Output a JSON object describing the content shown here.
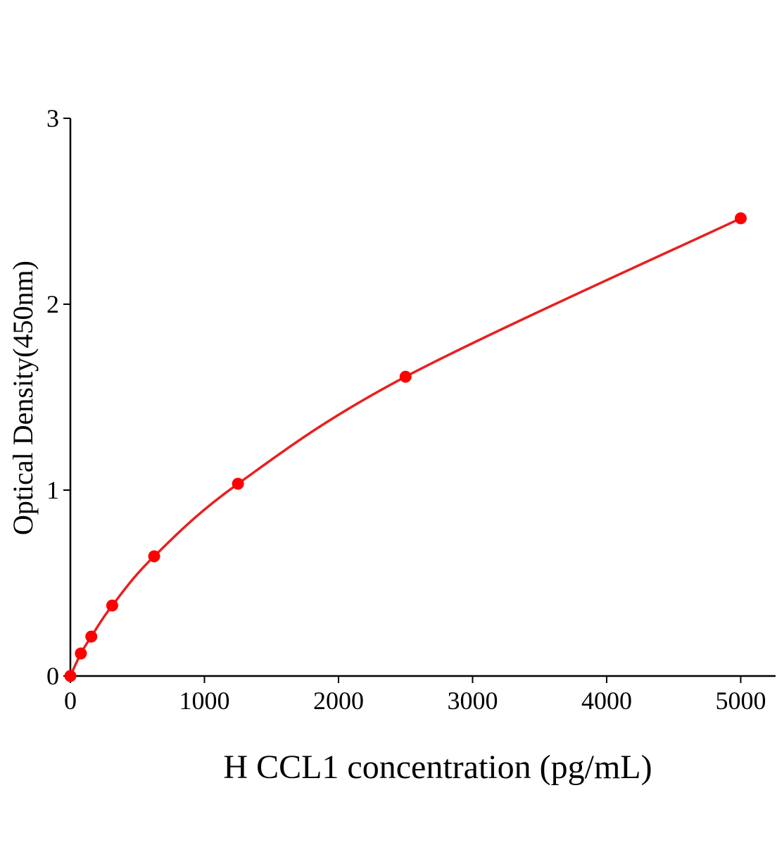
{
  "chart_data": {
    "type": "scatter",
    "xlabel": "H CCL1 concentration (pg/mL)",
    "ylabel": "Optical Density(450nm)",
    "x": [
      0,
      78,
      156,
      312,
      625,
      1250,
      2500,
      5000
    ],
    "series": [
      {
        "color": "#ff0000",
        "values": [
          0.0,
          0.121,
          0.212,
          0.379,
          0.644,
          1.034,
          1.61,
          2.462
        ]
      }
    ],
    "fit_line": true,
    "line_color": "#e8201f",
    "xlim": [
      0,
      5260
    ],
    "xticks": [
      0,
      1000,
      2000,
      3000,
      4000,
      5000
    ],
    "ylim": [
      0,
      3
    ],
    "yticks": [
      0,
      1,
      2,
      3
    ]
  }
}
